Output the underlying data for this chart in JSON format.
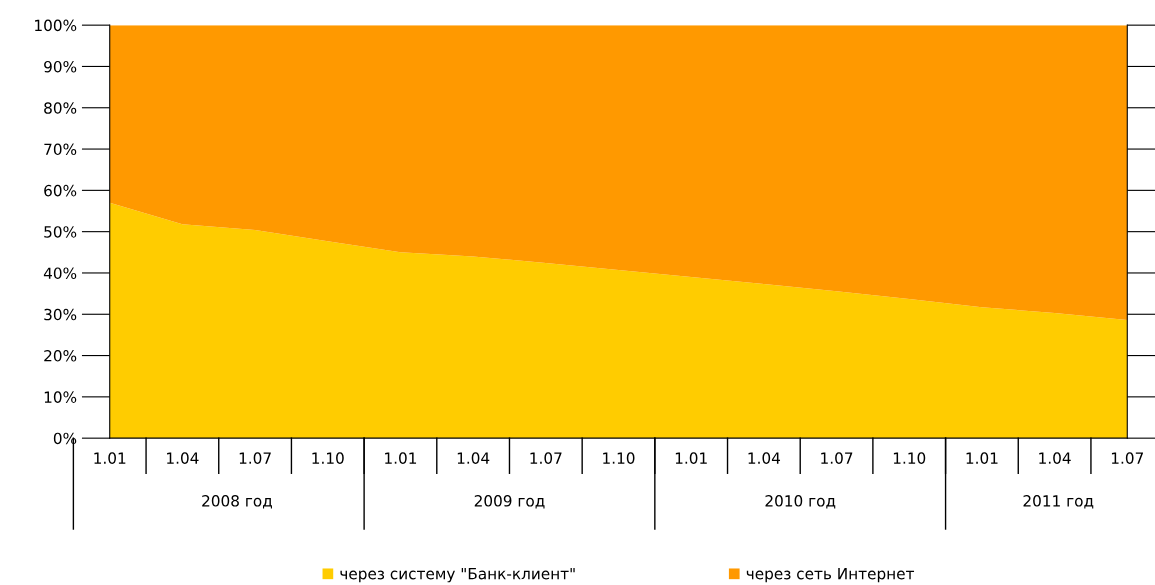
{
  "chart_data": {
    "type": "area",
    "stacked": true,
    "categories": [
      "1.01",
      "1.04",
      "1.07",
      "1.10",
      "1.01",
      "1.04",
      "1.07",
      "1.10",
      "1.01",
      "1.04",
      "1.07",
      "1.10",
      "1.01",
      "1.04",
      "1.07"
    ],
    "series": [
      {
        "name": "через систему \"Банк-клиент\"",
        "color": "#ffcc00",
        "values": [
          57,
          51.8,
          50.4,
          47.7,
          45,
          44,
          42.4,
          40.7,
          39,
          37.3,
          35.6,
          33.7,
          31.7,
          30.3,
          28.6
        ]
      },
      {
        "name": "через сеть Интернет",
        "color": "#ff9900",
        "values": [
          43,
          48.2,
          49.6,
          52.3,
          55,
          56,
          57.6,
          59.3,
          61,
          62.7,
          64.4,
          66.3,
          68.3,
          69.7,
          71.4
        ]
      }
    ],
    "annotations": [
      "2008 год",
      "2009 год",
      "2010 год",
      "2011 год"
    ],
    "ylim": [
      0,
      100
    ],
    "yticks": [
      {
        "value": 0,
        "label": "0%"
      },
      {
        "value": 10,
        "label": "10%"
      },
      {
        "value": 20,
        "label": "20%"
      },
      {
        "value": 30,
        "label": "30%"
      },
      {
        "value": 40,
        "label": "40%"
      },
      {
        "value": 50,
        "label": "50%"
      },
      {
        "value": 60,
        "label": "60%"
      },
      {
        "value": 70,
        "label": "70%"
      },
      {
        "value": 80,
        "label": "80%"
      },
      {
        "value": 90,
        "label": "90%"
      },
      {
        "value": 100,
        "label": "100%"
      }
    ],
    "legend": "bottom"
  }
}
